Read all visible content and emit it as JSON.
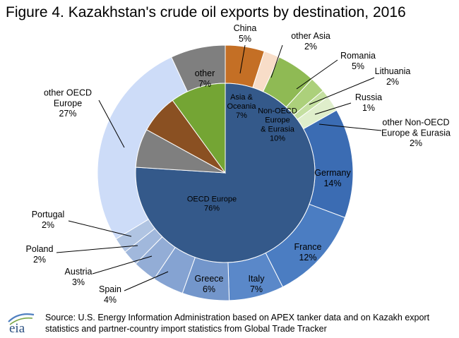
{
  "title": "Figure 4. Kazakhstan's crude oil exports by destination, 2016",
  "source_text": "Source: U.S. Energy Information Administration based on APEX tanker data and on Kazakh export statistics and partner-country import statistics from Global Trade Tracker",
  "logo_text": "eia",
  "colors": {
    "oecd_europe_inner": "#34598a",
    "asia_inner": "#8a5022",
    "nonoecd_inner": "#74a534",
    "other": "#7f7f7f",
    "germany": "#3b6cb3",
    "france": "#4b7dc2",
    "italy": "#5a88c9",
    "greece": "#7396cb",
    "spain": "#85a3d2",
    "austria": "#93add6",
    "poland": "#a1b8dc",
    "portugal": "#b0c4e2",
    "other_oecd_europe": "#cddcf8",
    "china": "#c46f25",
    "other_asia": "#f8ddc8",
    "romania": "#8fba54",
    "lithuania": "#acd07b",
    "russia": "#c4dfa0",
    "other_nonoecd": "#dfeecb"
  },
  "chart_data": {
    "type": "pie",
    "title": "Figure 4. Kazakhstan's crude oil exports by destination, 2016",
    "unit": "%",
    "inner_ring": [
      {
        "name": "OECD Europe",
        "value": 76,
        "label": "76%",
        "color": "#34598a"
      },
      {
        "name": "other",
        "value": 7,
        "label": "7%",
        "color": "#7f7f7f"
      },
      {
        "name": "Asia & Oceania",
        "value": 7,
        "label": "7%",
        "color": "#8a5022"
      },
      {
        "name": "Non-OECD Europe & Eurasia",
        "value": 10,
        "label": "10%",
        "color": "#74a534"
      }
    ],
    "outer_ring": [
      {
        "name": "China",
        "value": 5,
        "label": "5%",
        "color": "#c46f25"
      },
      {
        "name": "other Asia",
        "value": 2,
        "label": "2%",
        "color": "#f8ddc8"
      },
      {
        "name": "Romania",
        "value": 5,
        "label": "5%",
        "color": "#8fba54"
      },
      {
        "name": "Lithuania",
        "value": 2,
        "label": "2%",
        "color": "#acd07b"
      },
      {
        "name": "Russia",
        "value": 1,
        "label": "1%",
        "color": "#c4dfa0"
      },
      {
        "name": "other Non-OECD Europe & Eurasia",
        "value": 2,
        "label": "2%",
        "color": "#dfeecb"
      },
      {
        "name": "Germany",
        "value": 14,
        "label": "14%",
        "color": "#3b6cb3"
      },
      {
        "name": "France",
        "value": 12,
        "label": "12%",
        "color": "#4b7dc2"
      },
      {
        "name": "Italy",
        "value": 7,
        "label": "7%",
        "color": "#5a88c9"
      },
      {
        "name": "Greece",
        "value": 6,
        "label": "6%",
        "color": "#7396cb"
      },
      {
        "name": "Spain",
        "value": 4,
        "label": "4%",
        "color": "#85a3d2"
      },
      {
        "name": "Austria",
        "value": 3,
        "label": "3%",
        "color": "#93add6"
      },
      {
        "name": "Poland",
        "value": 2,
        "label": "2%",
        "color": "#a1b8dc"
      },
      {
        "name": "Portugal",
        "value": 2,
        "label": "2%",
        "color": "#b0c4e2"
      },
      {
        "name": "other OECD Europe",
        "value": 27,
        "label": "27%",
        "color": "#cddcf8"
      },
      {
        "name": "other",
        "value": 7,
        "label": "7%",
        "color": "#7f7f7f"
      }
    ],
    "legend": "none"
  }
}
